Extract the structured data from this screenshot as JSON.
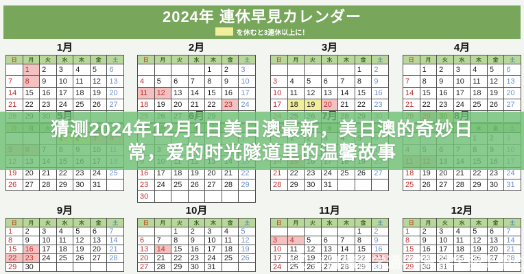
{
  "header": {
    "title": "2024年 連休早見カレンダー",
    "legend_text": "を休むと3連休以上に！"
  },
  "overlay": {
    "lines": [
      "猜测2024年12月1日美日澳最新，美日澳的奇妙日",
      "常，爱的时光隧道里的温馨故事"
    ]
  },
  "watermark": {
    "icon": "weibo-logo-icon",
    "text": "@日韩留学通-宇青留学服务中心"
  },
  "weekdays": [
    "日",
    "月",
    "火",
    "水",
    "木",
    "金",
    "土"
  ],
  "calendars": [
    {
      "name": "1月",
      "first_weekday": 1,
      "days": 31,
      "pink": [
        1,
        8
      ],
      "yellow": []
    },
    {
      "name": "2月",
      "first_weekday": 4,
      "days": 29,
      "pink": [
        11,
        12,
        23
      ],
      "yellow": []
    },
    {
      "name": "3月",
      "first_weekday": 5,
      "days": 31,
      "pink": [
        20
      ],
      "yellow": [
        18,
        19
      ]
    },
    {
      "name": "4月",
      "first_weekday": 1,
      "days": 30,
      "pink": [
        29
      ],
      "yellow": [
        30
      ]
    },
    {
      "name": "5月",
      "first_weekday": 3,
      "days": 31,
      "pink": [
        3,
        4,
        5,
        6
      ],
      "yellow": [
        1,
        2
      ]
    },
    {
      "name": "6月",
      "first_weekday": 6,
      "days": 30,
      "pink": [],
      "yellow": []
    },
    {
      "name": "7月",
      "first_weekday": 1,
      "days": 31,
      "pink": [
        15
      ],
      "yellow": []
    },
    {
      "name": "8月",
      "first_weekday": 4,
      "days": 31,
      "pink": [
        11,
        12
      ],
      "yellow": []
    },
    {
      "name": "9月",
      "first_weekday": 0,
      "days": 30,
      "pink": [
        16,
        22,
        23
      ],
      "yellow": []
    },
    {
      "name": "10月",
      "first_weekday": 2,
      "days": 31,
      "pink": [
        14
      ],
      "yellow": []
    },
    {
      "name": "11月",
      "first_weekday": 5,
      "days": 30,
      "pink": [
        3,
        4,
        23
      ],
      "yellow": []
    },
    {
      "name": "12月",
      "first_weekday": 0,
      "days": 31,
      "pink": [],
      "yellow": []
    }
  ],
  "colors": {
    "banner_green": "#78a75c",
    "table_header_green": "#b9d79a",
    "overlay_green": "rgba(111,192,117,0.82)",
    "holiday_pink": "#f4c1c1",
    "bridge_yellow": "#f1ef9b",
    "sunday_red": "#c22f2f",
    "saturday_blue": "#6b8fd0"
  }
}
